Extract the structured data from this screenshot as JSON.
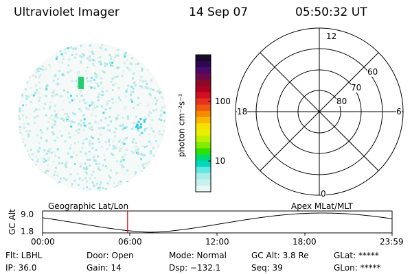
{
  "header": {
    "title": "Ultraviolet Imager",
    "date": "14 Sep 07",
    "time": "05:50:32 UT"
  },
  "colorbar": {
    "label": "photon cm⁻²s⁻¹",
    "ticks": [
      "100",
      "10"
    ],
    "colors": [
      "#1a0a2a",
      "#2c0a50",
      "#4a0a6a",
      "#6a0a4a",
      "#8a0a2a",
      "#b00020",
      "#d01020",
      "#e83020",
      "#f05a10",
      "#f88a00",
      "#f8b800",
      "#f8e000",
      "#e8f000",
      "#c0f000",
      "#80ec00",
      "#30e000",
      "#00d870",
      "#00d8c0",
      "#60e8e0",
      "#a8eee8",
      "#c8f0ec",
      "#e8f8f4"
    ]
  },
  "polar": {
    "mlt_labels": [
      "12",
      "18",
      "6",
      "0"
    ],
    "lat_labels": [
      "60",
      "70",
      "80"
    ]
  },
  "timeline": {
    "left_label": "Geographic Lat/Lon",
    "right_label": "Apex MLat/MLT",
    "axis_label": "GC Alt",
    "y_ticks": [
      "9.0",
      "1.8"
    ],
    "x_ticks": [
      "00:00",
      "06:00",
      "12:00",
      "18:00",
      "23:59"
    ],
    "current_time_fraction": 0.2433
  },
  "info": {
    "flt": "Flt: LBHL",
    "door": "Door: Open",
    "mode": "Mode: Normal",
    "gc_alt": "GC Alt: 3.8 Re",
    "glat": "GLat: *****",
    "ip": "IP: 36.0",
    "gain": "Gain: 14",
    "dsp": "Dsp: −132.1",
    "seq": "Seq: 39",
    "glon": "GLon: *****"
  }
}
